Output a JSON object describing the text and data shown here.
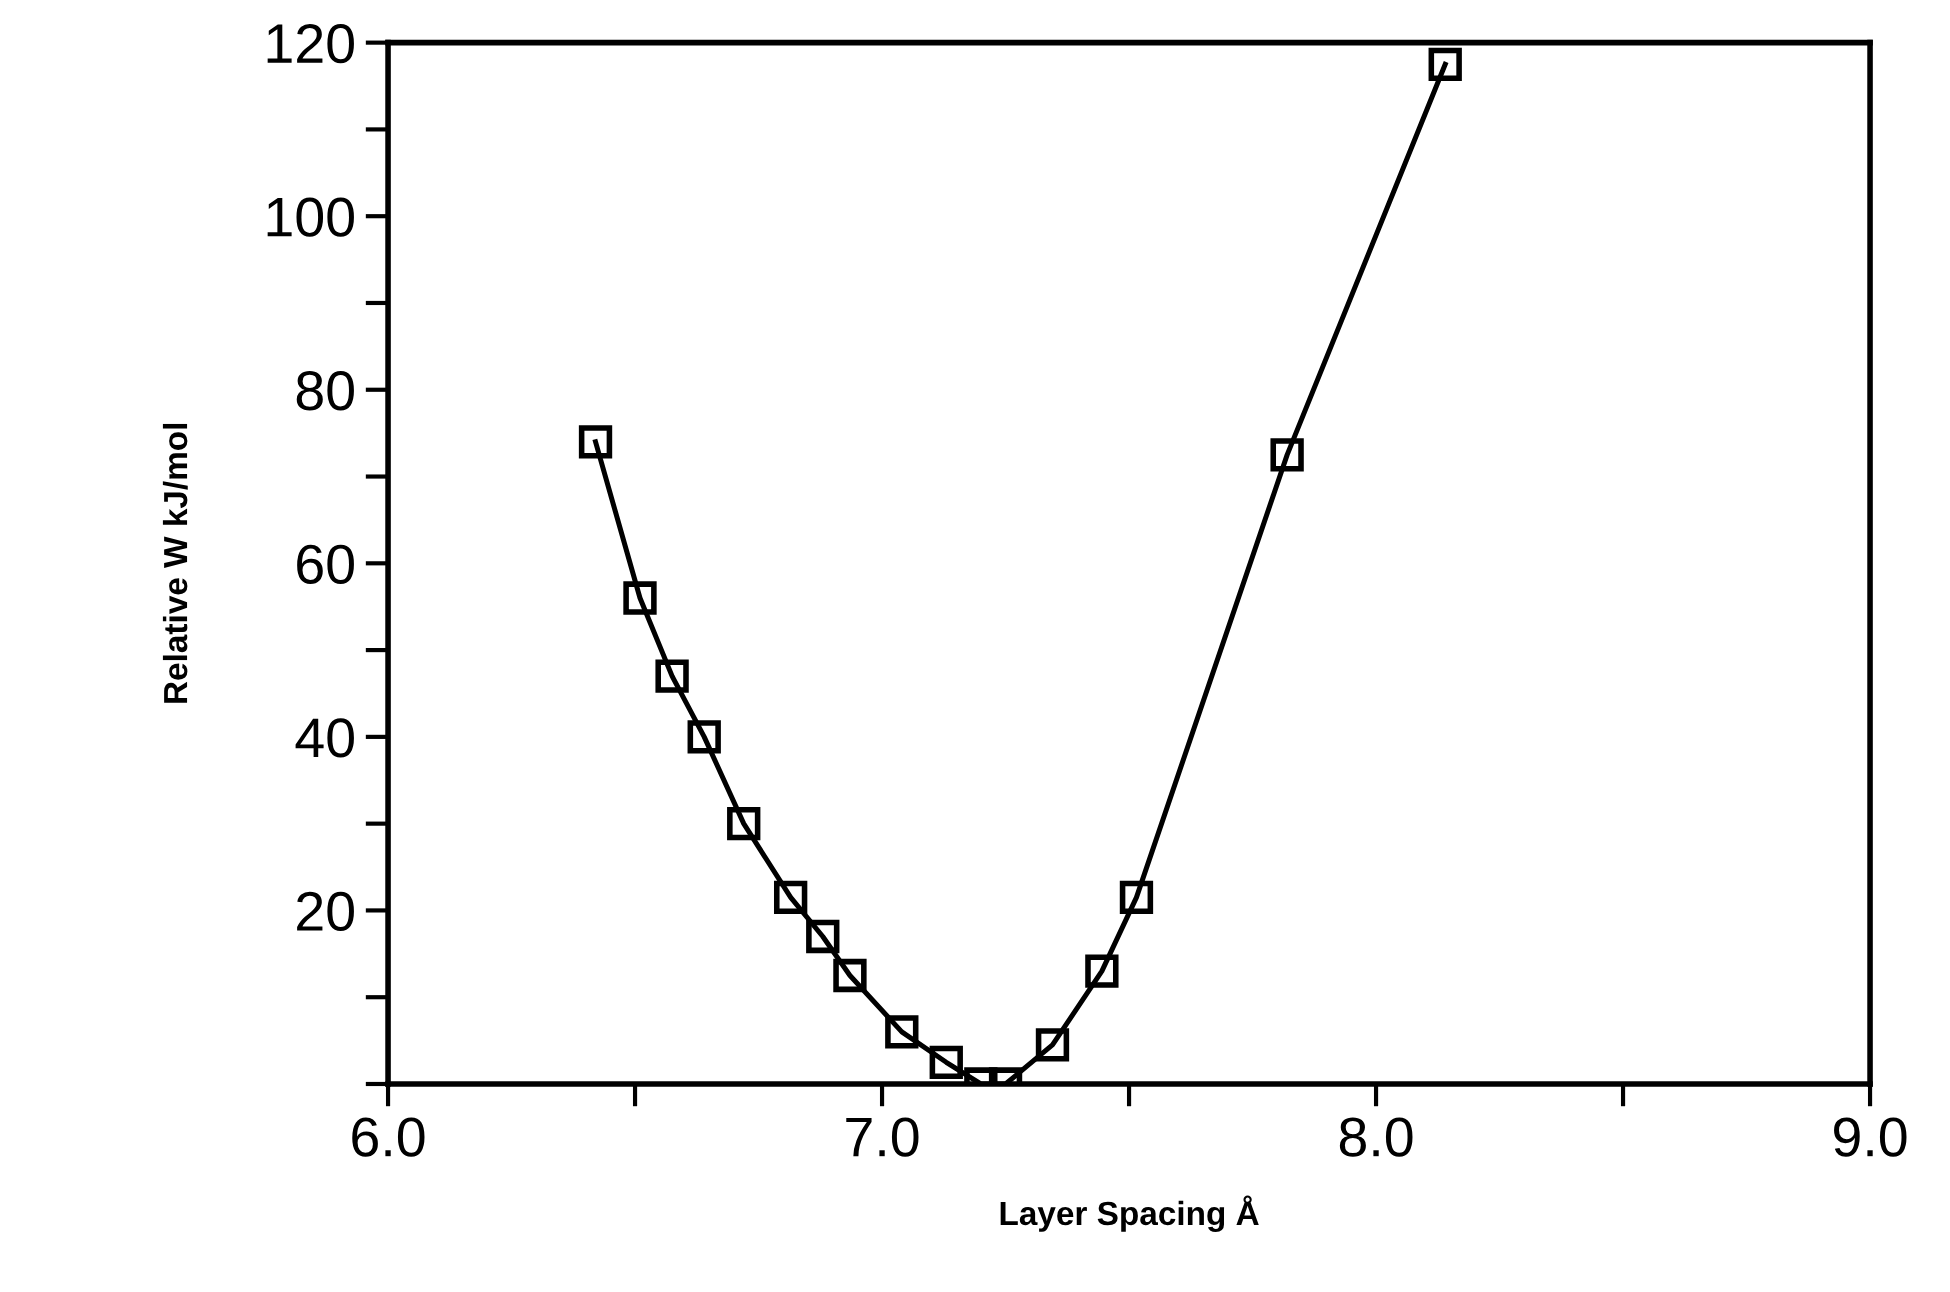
{
  "chart_data": {
    "type": "line",
    "xlabel": "Layer Spacing Å",
    "ylabel": "Relative W kJ/mol",
    "series": [
      {
        "color": "#000000",
        "x": [
          6.42,
          6.51,
          6.575,
          6.64,
          6.72,
          6.815,
          6.88,
          6.935,
          7.04,
          7.13,
          7.2,
          7.25,
          7.345,
          7.445,
          7.515,
          7.82,
          8.14
        ],
        "values": [
          74,
          56,
          47,
          40,
          30,
          21.5,
          17,
          12.5,
          6,
          2.5,
          0,
          0,
          4.5,
          13,
          21.5,
          72.5,
          117.5
        ]
      }
    ],
    "marker": "square",
    "line_style": "solid",
    "grid": false,
    "legend": false,
    "xlim": [
      6.0,
      9.0
    ],
    "xticks": [
      {
        "value": 6.0,
        "label": "6.0"
      },
      {
        "value": 6.5,
        "label": null
      },
      {
        "value": 7.0,
        "label": "7.0"
      },
      {
        "value": 7.5,
        "label": null
      },
      {
        "value": 8.0,
        "label": "8.0"
      },
      {
        "value": 8.5,
        "label": null
      },
      {
        "value": 9.0,
        "label": "9.0"
      }
    ],
    "ylim": [
      0,
      120
    ],
    "yticks": [
      {
        "value": 0,
        "label": null
      },
      {
        "value": 10,
        "label": null
      },
      20,
      {
        "value": 30,
        "label": null
      },
      40,
      {
        "value": 50,
        "label": null
      },
      60,
      {
        "value": 70,
        "label": null
      },
      80,
      {
        "value": 90,
        "label": null
      },
      100,
      {
        "value": 110,
        "label": null
      },
      120
    ]
  }
}
